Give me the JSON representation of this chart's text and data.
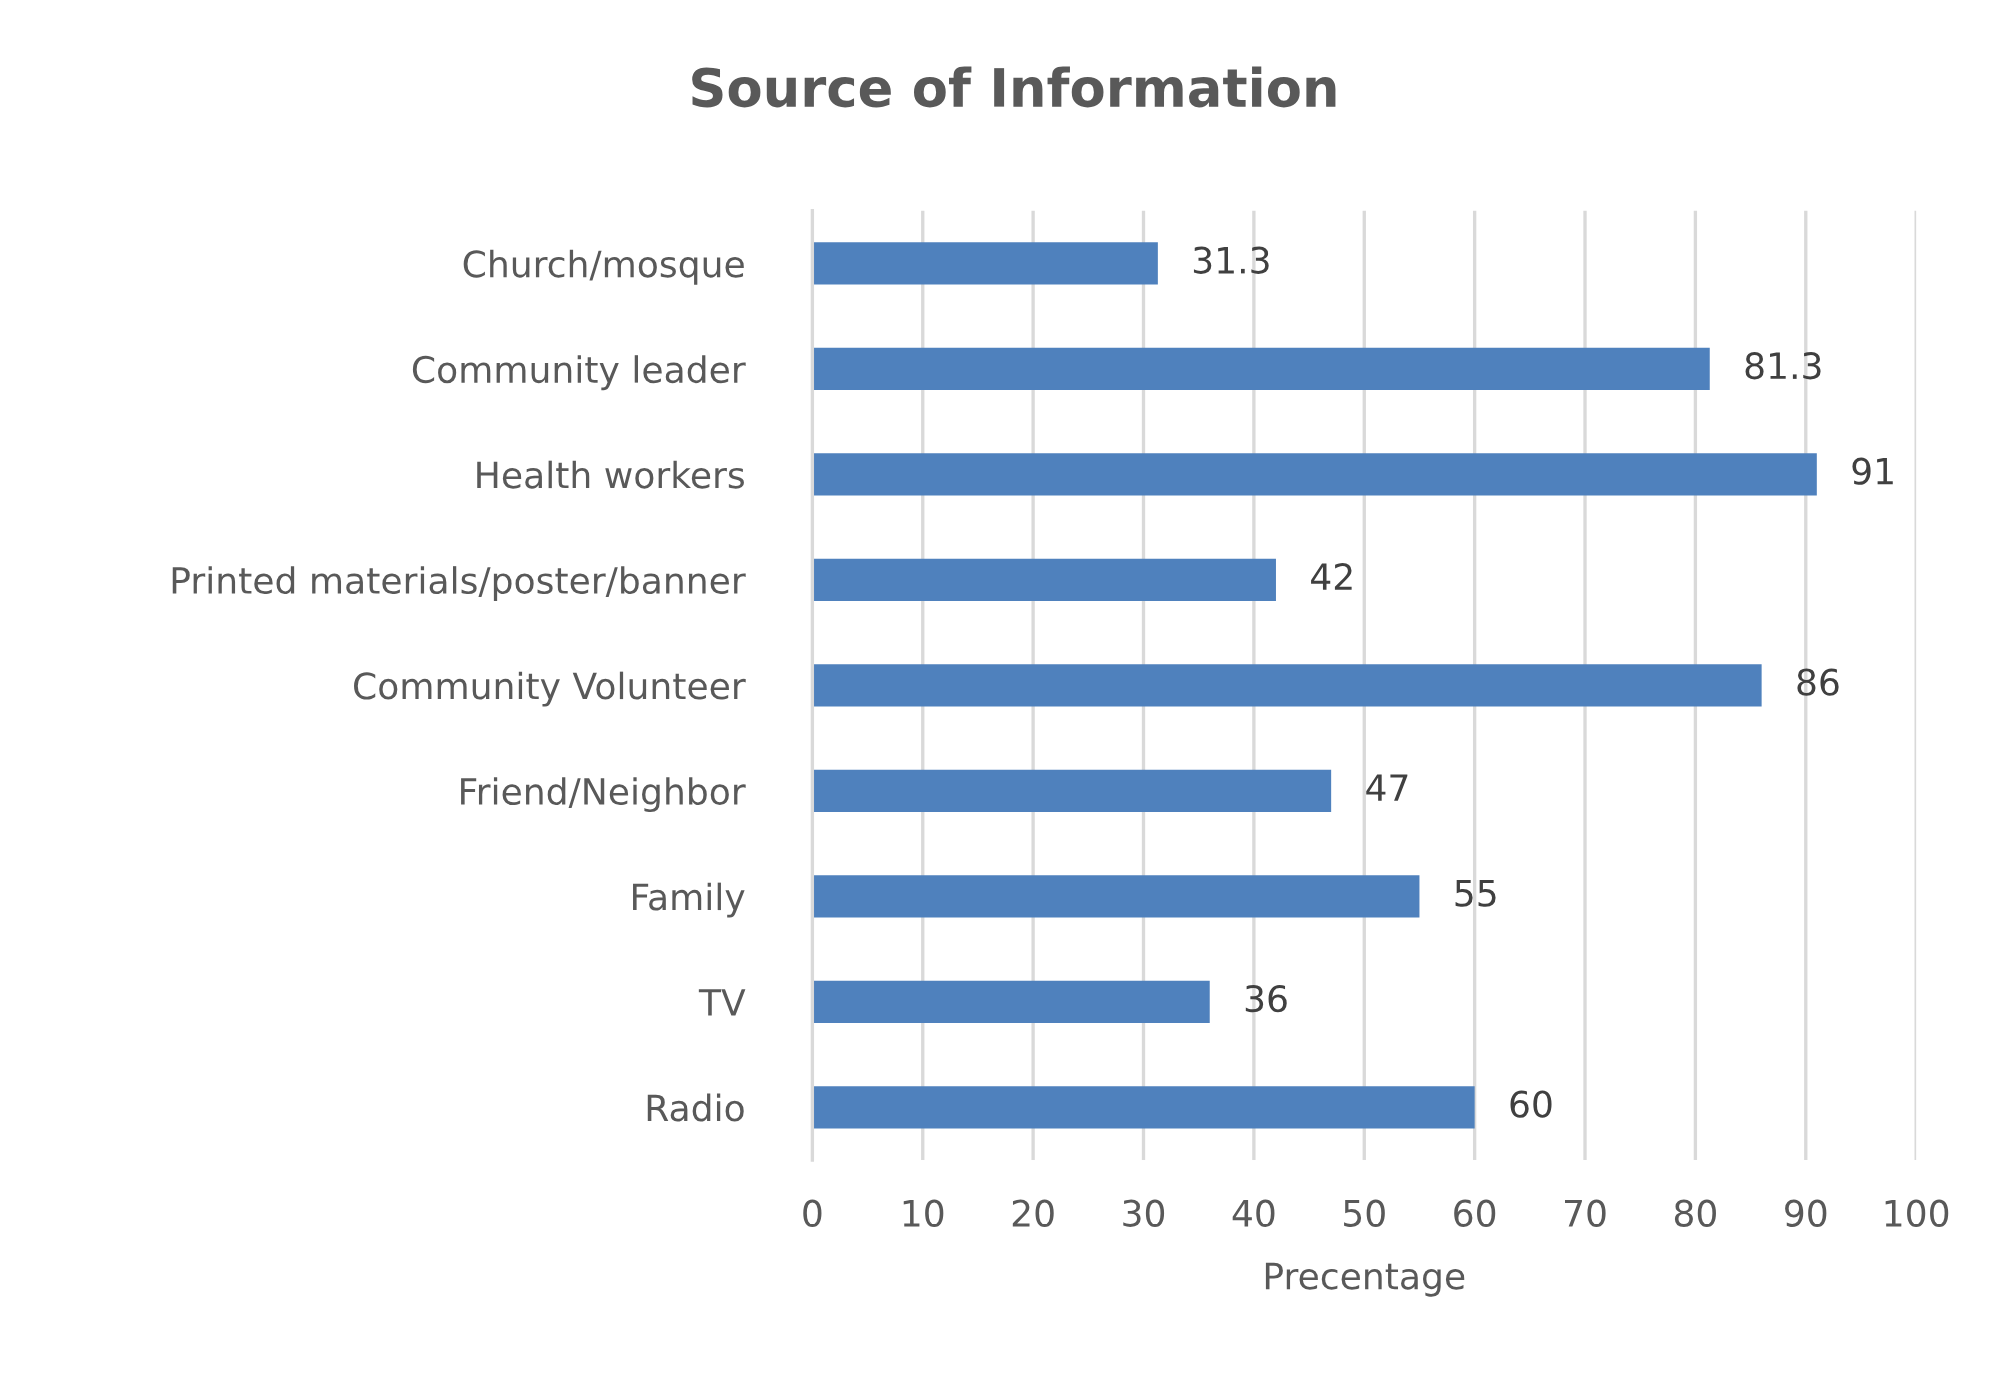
{
  "chart_data": {
    "type": "bar",
    "orientation": "horizontal",
    "title": "Source of Information",
    "xlabel": "Precentage",
    "categories": [
      "Church/mosque",
      "Community leader",
      "Health workers",
      "Printed materials/poster/banner",
      "Community Volunteer",
      "Friend/Neighbor",
      "Family",
      "TV",
      "Radio"
    ],
    "values": [
      31.3,
      81.3,
      91,
      42,
      86,
      47,
      55,
      36,
      60
    ],
    "color": "#4f81bd",
    "xlim": [
      0,
      100
    ],
    "xticks": [
      0,
      10,
      20,
      30,
      40,
      50,
      60,
      70,
      80,
      90,
      100
    ],
    "grid": "x",
    "data_labels": true
  }
}
